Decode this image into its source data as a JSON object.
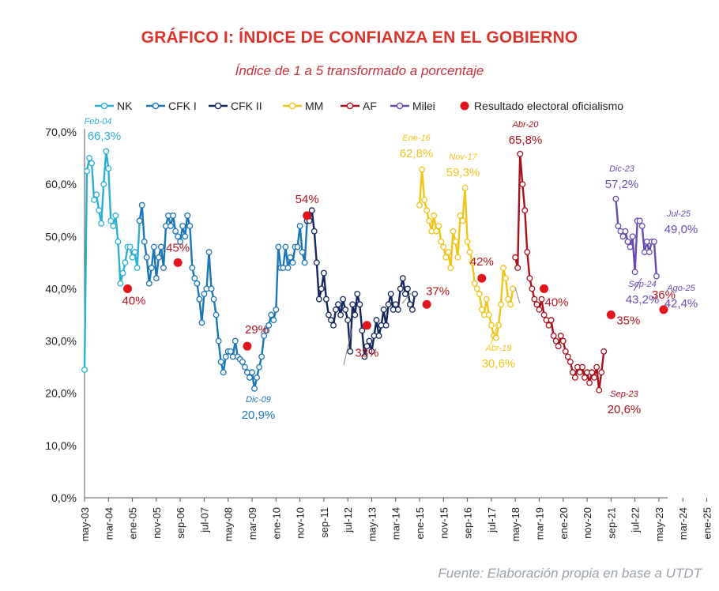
{
  "title": "GRÁFICO I: ÍNDICE DE CONFIANZA EN EL GOBIERNO",
  "subtitle": "Índice de 1 a 5 transformado a porcentaje",
  "source": "Fuente: Elaboración propia en base a UTDT",
  "colors": {
    "NK": "#2bb0d4",
    "CFK I": "#1b76b6",
    "CFK II": "#15265c",
    "MM": "#f0c419",
    "AF": "#a8121c",
    "Milei": "#6b4bb0",
    "elections": "#e0161c",
    "title": "#d9342b"
  },
  "chart_data": {
    "type": "line",
    "title": "GRÁFICO I: ÍNDICE DE CONFIANZA EN EL GOBIERNO",
    "subtitle": "Índice de 1 a 5 transformado a porcentaje",
    "xlabel": "",
    "ylabel": "",
    "x_unit": "month index since may-03 (0 = may-03)",
    "ylim": [
      0,
      70
    ],
    "yticks": [
      "0,0%",
      "10,0%",
      "20,0%",
      "30,0%",
      "40,0%",
      "50,0%",
      "60,0%",
      "70,0%"
    ],
    "xticks": [
      {
        "label": "may-03",
        "x": 0
      },
      {
        "label": "mar-04",
        "x": 10
      },
      {
        "label": "ene-05",
        "x": 20
      },
      {
        "label": "nov-05",
        "x": 30
      },
      {
        "label": "sep-06",
        "x": 40
      },
      {
        "label": "jul-07",
        "x": 50
      },
      {
        "label": "may-08",
        "x": 60
      },
      {
        "label": "mar-09",
        "x": 70
      },
      {
        "label": "ene-10",
        "x": 80
      },
      {
        "label": "nov-10",
        "x": 90
      },
      {
        "label": "sep-11",
        "x": 100
      },
      {
        "label": "jul-12",
        "x": 110
      },
      {
        "label": "may-13",
        "x": 120
      },
      {
        "label": "mar-14",
        "x": 130
      },
      {
        "label": "ene-15",
        "x": 140
      },
      {
        "label": "nov-15",
        "x": 150
      },
      {
        "label": "sep-16",
        "x": 160
      },
      {
        "label": "jul-17",
        "x": 170
      },
      {
        "label": "may-18",
        "x": 180
      },
      {
        "label": "mar-19",
        "x": 190
      },
      {
        "label": "ene-20",
        "x": 200
      },
      {
        "label": "nov-20",
        "x": 210
      },
      {
        "label": "sep-21",
        "x": 220
      },
      {
        "label": "jul-22",
        "x": 230
      },
      {
        "label": "may-23",
        "x": 240
      },
      {
        "label": "mar-24",
        "x": 250
      },
      {
        "label": "ene-25",
        "x": 260
      }
    ],
    "grid": false,
    "legend_position": "top",
    "series": [
      {
        "name": "NK",
        "color": "#2bb0d4",
        "points": [
          [
            0,
            24.5
          ],
          [
            1,
            62.5
          ],
          [
            2,
            65
          ],
          [
            3,
            64
          ],
          [
            4,
            57
          ],
          [
            5,
            58
          ],
          [
            6,
            55
          ],
          [
            7,
            52.5
          ],
          [
            8,
            60
          ],
          [
            9,
            66.3
          ],
          [
            10,
            63
          ],
          [
            11,
            53
          ],
          [
            12,
            52
          ],
          [
            13,
            54
          ],
          [
            14,
            49
          ],
          [
            15,
            41
          ],
          [
            16,
            43
          ],
          [
            17,
            45
          ],
          [
            18,
            48
          ],
          [
            19,
            48
          ],
          [
            20,
            46
          ],
          [
            21,
            47
          ],
          [
            22,
            44
          ],
          [
            23,
            53
          ]
        ]
      },
      {
        "name": "CFK I",
        "color": "#1b76b6",
        "points": [
          [
            23,
            53
          ],
          [
            24,
            56
          ],
          [
            25,
            49
          ],
          [
            26,
            46
          ],
          [
            27,
            41
          ],
          [
            28,
            44
          ],
          [
            29,
            48
          ],
          [
            30,
            42
          ],
          [
            31,
            46
          ],
          [
            32,
            48
          ],
          [
            33,
            44
          ],
          [
            34,
            52
          ],
          [
            35,
            54
          ],
          [
            36,
            52
          ],
          [
            37,
            54
          ],
          [
            38,
            51
          ],
          [
            39,
            50
          ],
          [
            40,
            49
          ],
          [
            41,
            52
          ],
          [
            42,
            50
          ],
          [
            43,
            54
          ],
          [
            44,
            52
          ],
          [
            45,
            44
          ],
          [
            46,
            42
          ],
          [
            47,
            41
          ],
          [
            48,
            38
          ],
          [
            49,
            33.5
          ],
          [
            50,
            39
          ],
          [
            51,
            40
          ],
          [
            52,
            47
          ],
          [
            53,
            40
          ],
          [
            54,
            38
          ],
          [
            55,
            35
          ],
          [
            56,
            30
          ],
          [
            57,
            26
          ],
          [
            58,
            24
          ],
          [
            59,
            27
          ],
          [
            60,
            28
          ],
          [
            61,
            28
          ],
          [
            62,
            27
          ],
          [
            63,
            30
          ],
          [
            64,
            27
          ],
          [
            65,
            26.5
          ],
          [
            66,
            26
          ],
          [
            67,
            25
          ],
          [
            68,
            24
          ],
          [
            69,
            23
          ],
          [
            70,
            24
          ],
          [
            71,
            20.9
          ],
          [
            72,
            23
          ],
          [
            73,
            25
          ],
          [
            74,
            27
          ],
          [
            75,
            31
          ],
          [
            76,
            32
          ],
          [
            77,
            33
          ],
          [
            78,
            35
          ],
          [
            79,
            34
          ],
          [
            80,
            36
          ],
          [
            81,
            48
          ],
          [
            82,
            44
          ],
          [
            83,
            44
          ],
          [
            84,
            48
          ],
          [
            85,
            44
          ],
          [
            86,
            46
          ],
          [
            87,
            45
          ],
          [
            88,
            48
          ],
          [
            89,
            48
          ],
          [
            90,
            52
          ],
          [
            91,
            47
          ],
          [
            92,
            45
          ],
          [
            93,
            53
          ]
        ]
      },
      {
        "name": "CFK II",
        "color": "#15265c",
        "points": [
          [
            93,
            53
          ],
          [
            94,
            53
          ],
          [
            95,
            55
          ],
          [
            96,
            51
          ],
          [
            97,
            45
          ],
          [
            98,
            38
          ],
          [
            99,
            40
          ],
          [
            100,
            43
          ],
          [
            101,
            38
          ],
          [
            102,
            35
          ],
          [
            103,
            34
          ],
          [
            104,
            33
          ],
          [
            105,
            36
          ],
          [
            106,
            37
          ],
          [
            107,
            35
          ],
          [
            108,
            38
          ],
          [
            109,
            36
          ],
          [
            110,
            34
          ],
          [
            111,
            28
          ],
          [
            112,
            37
          ],
          [
            113,
            35
          ],
          [
            114,
            39
          ],
          [
            115,
            37
          ],
          [
            116,
            32
          ],
          [
            117,
            27
          ],
          [
            118,
            29
          ],
          [
            119,
            30
          ],
          [
            120,
            28
          ],
          [
            121,
            31
          ],
          [
            122,
            34
          ],
          [
            123,
            31
          ],
          [
            124,
            33
          ],
          [
            125,
            36
          ],
          [
            126,
            33
          ],
          [
            127,
            37
          ],
          [
            128,
            39
          ],
          [
            129,
            36
          ],
          [
            130,
            37
          ],
          [
            131,
            36
          ],
          [
            132,
            40
          ],
          [
            133,
            42
          ],
          [
            134,
            39
          ],
          [
            135,
            40
          ],
          [
            136,
            37
          ],
          [
            137,
            36
          ],
          [
            138,
            39
          ]
        ]
      },
      {
        "name": "MM",
        "color": "#f0c419",
        "points": [
          [
            140,
            56
          ],
          [
            141,
            62.8
          ],
          [
            142,
            57
          ],
          [
            143,
            55
          ],
          [
            144,
            53
          ],
          [
            145,
            51
          ],
          [
            146,
            54
          ],
          [
            147,
            51
          ],
          [
            148,
            52
          ],
          [
            149,
            49
          ],
          [
            150,
            48
          ],
          [
            151,
            46
          ],
          [
            152,
            47
          ],
          [
            153,
            44
          ],
          [
            154,
            51
          ],
          [
            155,
            49
          ],
          [
            156,
            46
          ],
          [
            157,
            54
          ],
          [
            158,
            53
          ],
          [
            159,
            59.3
          ],
          [
            160,
            49
          ],
          [
            161,
            47
          ],
          [
            162,
            45
          ],
          [
            163,
            41
          ],
          [
            164,
            40
          ],
          [
            165,
            39
          ],
          [
            166,
            36
          ],
          [
            167,
            35
          ],
          [
            168,
            38
          ],
          [
            169,
            35
          ],
          [
            170,
            33
          ],
          [
            171,
            31
          ],
          [
            172,
            30.6
          ],
          [
            173,
            33
          ],
          [
            174,
            37
          ],
          [
            175,
            44
          ],
          [
            176,
            42
          ],
          [
            177,
            38
          ],
          [
            178,
            37
          ],
          [
            179,
            40
          ]
        ]
      },
      {
        "name": "AF",
        "color": "#a8121c",
        "points": [
          [
            180,
            46
          ],
          [
            181,
            44
          ],
          [
            182,
            65.8
          ],
          [
            183,
            60
          ],
          [
            184,
            55
          ],
          [
            185,
            47
          ],
          [
            186,
            42
          ],
          [
            187,
            40
          ],
          [
            188,
            38
          ],
          [
            189,
            37
          ],
          [
            190,
            36
          ],
          [
            191,
            38
          ],
          [
            192,
            35
          ],
          [
            193,
            34
          ],
          [
            194,
            33
          ],
          [
            195,
            34
          ],
          [
            196,
            31
          ],
          [
            197,
            30
          ],
          [
            198,
            29
          ],
          [
            199,
            31
          ],
          [
            200,
            30
          ],
          [
            201,
            28
          ],
          [
            202,
            27
          ],
          [
            203,
            26
          ],
          [
            204,
            24
          ],
          [
            205,
            23
          ],
          [
            206,
            25
          ],
          [
            207,
            24
          ],
          [
            208,
            25
          ],
          [
            209,
            23
          ],
          [
            210,
            24
          ],
          [
            211,
            22
          ],
          [
            212,
            24
          ],
          [
            213,
            23
          ],
          [
            214,
            25
          ],
          [
            215,
            20.6
          ],
          [
            216,
            24
          ],
          [
            217,
            28
          ]
        ]
      },
      {
        "name": "Milei",
        "color": "#6b4bb0",
        "points": [
          [
            222,
            57.2
          ],
          [
            223,
            52
          ],
          [
            224,
            51
          ],
          [
            225,
            50
          ],
          [
            226,
            51
          ],
          [
            227,
            49
          ],
          [
            228,
            48
          ],
          [
            229,
            50
          ],
          [
            230,
            43.2
          ],
          [
            231,
            53
          ],
          [
            232,
            53
          ],
          [
            233,
            52
          ],
          [
            234,
            47
          ],
          [
            235,
            49
          ],
          [
            236,
            47
          ],
          [
            237,
            49
          ],
          [
            238,
            49
          ],
          [
            239,
            42.4
          ]
        ]
      }
    ],
    "elections": {
      "name": "Resultado electoral oficialismo",
      "color": "#e0161c",
      "points": [
        {
          "x": 18,
          "y": 40,
          "label": "40%"
        },
        {
          "x": 39,
          "y": 45,
          "label": "45%"
        },
        {
          "x": 68,
          "y": 29,
          "label": "29%"
        },
        {
          "x": 93,
          "y": 54,
          "label": "54%"
        },
        {
          "x": 118,
          "y": 33,
          "label": "33%"
        },
        {
          "x": 143,
          "y": 37,
          "label": "37%"
        },
        {
          "x": 166,
          "y": 42,
          "label": "42%"
        },
        {
          "x": 192,
          "y": 40,
          "label": "40%"
        },
        {
          "x": 220,
          "y": 35,
          "label": "35%"
        },
        {
          "x": 242,
          "y": 36,
          "label": "36%"
        }
      ]
    },
    "annotations": [
      {
        "date": "Feb-04",
        "value": "66,3%",
        "series": "NK"
      },
      {
        "date": "Dic-09",
        "value": "20,9%",
        "series": "CFK I"
      },
      {
        "date": "Ene-16",
        "value": "62,8%",
        "series": "MM"
      },
      {
        "date": "Nov-17",
        "value": "59,3%",
        "series": "MM"
      },
      {
        "date": "Abr-19",
        "value": "30,6%",
        "series": "MM"
      },
      {
        "date": "Abr-20",
        "value": "65,8%",
        "series": "AF"
      },
      {
        "date": "Sep-23",
        "value": "20,6%",
        "series": "AF"
      },
      {
        "date": "Dic-23",
        "value": "57,2%",
        "series": "Milei"
      },
      {
        "date": "Jul-25",
        "value": "49,0%",
        "series": "Milei"
      },
      {
        "date": "Sep-24",
        "value": "43,2%",
        "series": "Milei"
      },
      {
        "date": "Ago-25",
        "value": "42,4%",
        "series": "Milei"
      }
    ]
  }
}
